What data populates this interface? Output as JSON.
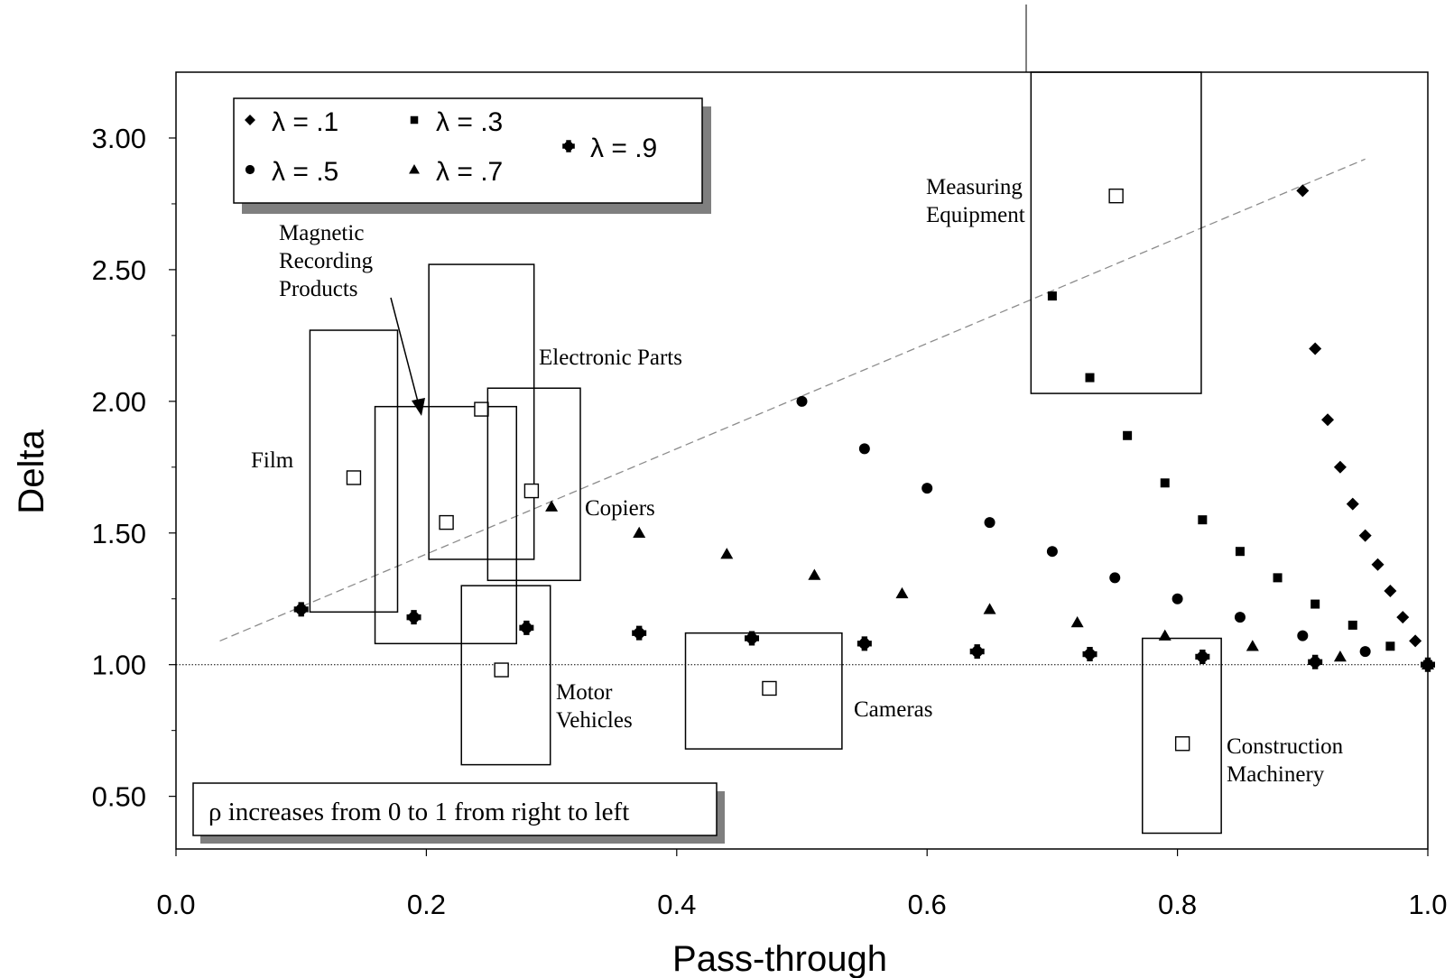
{
  "chart_data": {
    "type": "scatter",
    "xlabel": "Pass-through",
    "ylabel": "Delta",
    "xlim": [
      0.0,
      1.0
    ],
    "ylim": [
      0.3,
      3.25
    ],
    "x_ticks": [
      "0.0",
      "0.2",
      "0.4",
      "0.6",
      "0.8",
      "1.0"
    ],
    "y_ticks": [
      "0.50",
      "1.00",
      "1.50",
      "2.00",
      "2.50",
      "3.00"
    ],
    "grid": false,
    "legend_position": "top-left",
    "reference_line_y": 1.0,
    "trend_line": {
      "from": [
        0.035,
        1.09
      ],
      "to": [
        0.95,
        2.92
      ],
      "style": "dashed"
    },
    "series": [
      {
        "name": "λ = .1",
        "marker": "diamond",
        "x": [
          0.9,
          0.91,
          0.92,
          0.93,
          0.94,
          0.95,
          0.96,
          0.97,
          0.98,
          0.99,
          1.0
        ],
        "y": [
          2.8,
          2.2,
          1.93,
          1.75,
          1.61,
          1.49,
          1.38,
          1.28,
          1.18,
          1.09,
          1.0
        ]
      },
      {
        "name": "λ = .3",
        "marker": "square",
        "x": [
          0.7,
          0.73,
          0.76,
          0.79,
          0.82,
          0.85,
          0.88,
          0.91,
          0.94,
          0.97,
          1.0
        ],
        "y": [
          2.4,
          2.09,
          1.87,
          1.69,
          1.55,
          1.43,
          1.33,
          1.23,
          1.15,
          1.07,
          1.0
        ]
      },
      {
        "name": "λ = .5",
        "marker": "circle",
        "x": [
          0.5,
          0.55,
          0.6,
          0.65,
          0.7,
          0.75,
          0.8,
          0.85,
          0.9,
          0.95,
          1.0
        ],
        "y": [
          2.0,
          1.82,
          1.67,
          1.54,
          1.43,
          1.33,
          1.25,
          1.18,
          1.11,
          1.05,
          1.0
        ]
      },
      {
        "name": "λ = .7",
        "marker": "triangle",
        "x": [
          0.3,
          0.37,
          0.44,
          0.51,
          0.58,
          0.65,
          0.72,
          0.79,
          0.86,
          0.93,
          1.0
        ],
        "y": [
          1.6,
          1.5,
          1.42,
          1.34,
          1.27,
          1.21,
          1.16,
          1.11,
          1.07,
          1.03,
          1.0
        ]
      },
      {
        "name": "λ = .9",
        "marker": "plus-circle",
        "x": [
          0.1,
          0.19,
          0.28,
          0.37,
          0.46,
          0.55,
          0.64,
          0.73,
          0.82,
          0.91,
          1.0
        ],
        "y": [
          1.21,
          1.18,
          1.14,
          1.12,
          1.1,
          1.08,
          1.05,
          1.04,
          1.03,
          1.01,
          1.0
        ]
      }
    ],
    "industries": [
      {
        "label": "Film",
        "point": [
          0.142,
          1.71
        ],
        "x_range": [
          0.107,
          0.177
        ],
        "y_range": [
          1.2,
          2.27
        ],
        "label_pos": "left"
      },
      {
        "label": "Magnetic Recording Products",
        "point": [
          0.216,
          1.54
        ],
        "x_range": [
          0.159,
          0.272
        ],
        "y_range": [
          1.08,
          1.98
        ],
        "label_pos": "above-arrow"
      },
      {
        "label": "Electronic Parts",
        "point": [
          0.244,
          1.97
        ],
        "x_range": [
          0.202,
          0.286
        ],
        "y_range": [
          1.4,
          2.52
        ],
        "label_pos": "right"
      },
      {
        "label": "Copiers",
        "point": [
          0.284,
          1.66
        ],
        "x_range": [
          0.249,
          0.323
        ],
        "y_range": [
          1.32,
          2.05
        ],
        "label_pos": "right"
      },
      {
        "label": "Motor Vehicles",
        "point": [
          0.26,
          0.98
        ],
        "x_range": [
          0.228,
          0.299
        ],
        "y_range": [
          0.62,
          1.3
        ],
        "label_pos": "right"
      },
      {
        "label": "Cameras",
        "point": [
          0.474,
          0.91
        ],
        "x_range": [
          0.407,
          0.532
        ],
        "y_range": [
          0.68,
          1.12
        ],
        "label_pos": "right"
      },
      {
        "label": "Measuring Equipment",
        "point": [
          0.751,
          2.78
        ],
        "x_range": [
          0.683,
          0.819
        ],
        "y_range": [
          2.03,
          3.25
        ],
        "label_pos": "left"
      },
      {
        "label": "Construction Machinery",
        "point": [
          0.804,
          0.7
        ],
        "x_range": [
          0.772,
          0.835
        ],
        "y_range": [
          0.36,
          1.1
        ],
        "label_pos": "right"
      }
    ],
    "note": "ρ increases from 0 to 1 from right to left"
  },
  "colors": {
    "ink": "#000000",
    "shadow": "#7f7f7f",
    "trend": "#8c8c8c",
    "background": "#ffffff"
  }
}
